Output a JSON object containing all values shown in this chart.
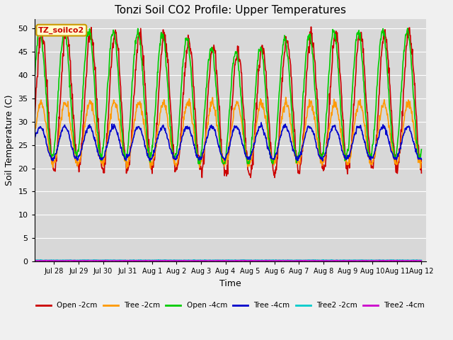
{
  "title": "Tonzi Soil CO2 Profile: Upper Temperatures",
  "xlabel": "Time",
  "ylabel": "Soil Temperature (C)",
  "ylim": [
    0,
    52
  ],
  "yticks": [
    0,
    5,
    10,
    15,
    20,
    25,
    30,
    35,
    40,
    45,
    50
  ],
  "plot_bg_color": "#d8d8d8",
  "fig_bg_color": "#f0f0f0",
  "series": [
    {
      "label": "Open -2cm",
      "color": "#cc0000",
      "lw": 1.2
    },
    {
      "label": "Tree -2cm",
      "color": "#ff9900",
      "lw": 1.2
    },
    {
      "label": "Open -4cm",
      "color": "#00cc00",
      "lw": 1.2
    },
    {
      "label": "Tree -4cm",
      "color": "#0000cc",
      "lw": 1.2
    },
    {
      "label": "Tree2 -2cm",
      "color": "#00cccc",
      "lw": 1.2
    },
    {
      "label": "Tree2 -4cm",
      "color": "#cc00cc",
      "lw": 1.2
    }
  ],
  "annotation_text": "TZ_soilco2",
  "annotation_bg": "#ffffcc",
  "annotation_border": "#cc9900",
  "annotation_text_color": "#cc0000",
  "grid_color": "#ffffff",
  "grid_lw": 0.8,
  "tick_fontsize": 7,
  "axis_label_fontsize": 9,
  "title_fontsize": 11
}
